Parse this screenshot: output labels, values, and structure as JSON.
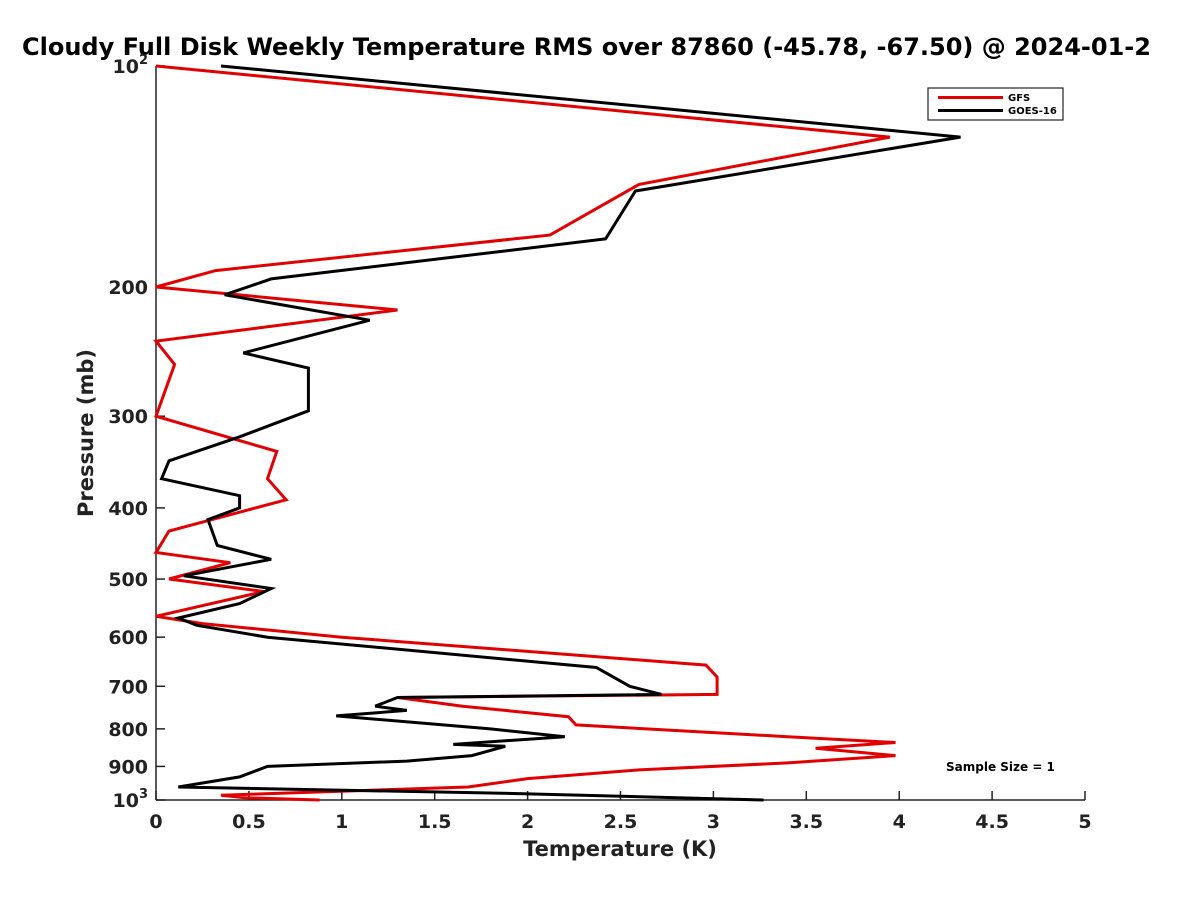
{
  "chart_data": {
    "type": "line",
    "title": "Cloudy Full Disk Weekly Temperature RMS over 87860 (-45.78, -67.50) @ 2024-01-2",
    "xlabel": "Temperature (K)",
    "ylabel": "Pressure (mb)",
    "xlim": [
      0,
      5
    ],
    "ylim": [
      1000,
      100
    ],
    "yscale": "log",
    "y_reversed": true,
    "grid": false,
    "legend_position": "top-right",
    "x_ticks": [
      "0",
      "0.5",
      "1",
      "1.5",
      "2",
      "2.5",
      "3",
      "3.5",
      "4",
      "4.5",
      "5"
    ],
    "x_tick_values": [
      0,
      0.5,
      1,
      1.5,
      2,
      2.5,
      3,
      3.5,
      4,
      4.5,
      5
    ],
    "y_ticks": [
      {
        "value": 100,
        "base": "10",
        "exp": "2"
      },
      {
        "value": 200,
        "base": "200",
        "exp": ""
      },
      {
        "value": 300,
        "base": "300",
        "exp": ""
      },
      {
        "value": 400,
        "base": "400",
        "exp": ""
      },
      {
        "value": 500,
        "base": "500",
        "exp": ""
      },
      {
        "value": 600,
        "base": "600",
        "exp": ""
      },
      {
        "value": 700,
        "base": "700",
        "exp": ""
      },
      {
        "value": 800,
        "base": "800",
        "exp": ""
      },
      {
        "value": 900,
        "base": "900",
        "exp": ""
      },
      {
        "value": 1000,
        "base": "10",
        "exp": "3"
      }
    ],
    "annotation": "Sample Size = 1",
    "series": [
      {
        "name": "GFS",
        "color": "#e00000",
        "points": [
          [
            0.0,
            100
          ],
          [
            3.95,
            125
          ],
          [
            2.6,
            145
          ],
          [
            2.12,
            170
          ],
          [
            0.32,
            190
          ],
          [
            0.0,
            200
          ],
          [
            1.3,
            215
          ],
          [
            0.0,
            237
          ],
          [
            0.1,
            255
          ],
          [
            0.0,
            300
          ],
          [
            0.65,
            335
          ],
          [
            0.6,
            365
          ],
          [
            0.7,
            390
          ],
          [
            0.07,
            430
          ],
          [
            0.0,
            460
          ],
          [
            0.4,
            475
          ],
          [
            0.07,
            500
          ],
          [
            0.58,
            520
          ],
          [
            0.0,
            562
          ],
          [
            0.25,
            575
          ],
          [
            1.0,
            600
          ],
          [
            2.96,
            655
          ],
          [
            3.02,
            680
          ],
          [
            3.02,
            718
          ],
          [
            1.3,
            725
          ],
          [
            1.65,
            745
          ],
          [
            2.22,
            770
          ],
          [
            2.26,
            790
          ],
          [
            3.4,
            820
          ],
          [
            3.98,
            835
          ],
          [
            3.55,
            850
          ],
          [
            3.98,
            870
          ],
          [
            3.4,
            890
          ],
          [
            2.6,
            910
          ],
          [
            2.0,
            935
          ],
          [
            1.68,
            960
          ],
          [
            0.35,
            985
          ],
          [
            0.48,
            993
          ],
          [
            0.88,
            1000
          ]
        ]
      },
      {
        "name": "GOES-16",
        "color": "#000000",
        "points": [
          [
            0.35,
            100
          ],
          [
            4.33,
            125
          ],
          [
            2.58,
            148
          ],
          [
            2.42,
            172
          ],
          [
            0.62,
            195
          ],
          [
            0.37,
            205
          ],
          [
            1.15,
            222
          ],
          [
            0.47,
            246
          ],
          [
            0.82,
            258
          ],
          [
            0.82,
            295
          ],
          [
            0.45,
            320
          ],
          [
            0.07,
            345
          ],
          [
            0.03,
            365
          ],
          [
            0.45,
            385
          ],
          [
            0.45,
            400
          ],
          [
            0.28,
            415
          ],
          [
            0.33,
            450
          ],
          [
            0.62,
            470
          ],
          [
            0.15,
            495
          ],
          [
            0.62,
            515
          ],
          [
            0.45,
            540
          ],
          [
            0.12,
            565
          ],
          [
            0.22,
            578
          ],
          [
            0.6,
            600
          ],
          [
            2.37,
            660
          ],
          [
            2.55,
            700
          ],
          [
            2.72,
            718
          ],
          [
            1.3,
            725
          ],
          [
            1.18,
            745
          ],
          [
            1.35,
            755
          ],
          [
            0.97,
            768
          ],
          [
            1.8,
            800
          ],
          [
            2.2,
            820
          ],
          [
            1.6,
            840
          ],
          [
            1.88,
            845
          ],
          [
            1.7,
            870
          ],
          [
            1.35,
            885
          ],
          [
            0.6,
            900
          ],
          [
            0.45,
            930
          ],
          [
            0.12,
            960
          ],
          [
            1.95,
            980
          ],
          [
            3.27,
            1000
          ]
        ]
      }
    ]
  }
}
